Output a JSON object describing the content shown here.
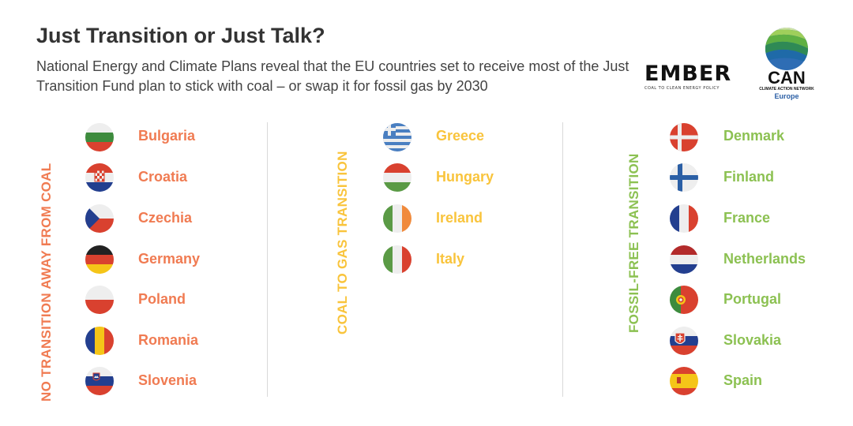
{
  "header": {
    "title": "Just Transition or Just Talk?",
    "subtitle": "National Energy and Climate Plans reveal that the EU countries set to receive most of the Just Transition Fund plan to stick with coal – or swap it for fossil gas by 2030"
  },
  "logos": {
    "ember": {
      "word": "EMBER",
      "tagline": "COAL TO CLEAN ENERGY POLICY"
    },
    "can": {
      "word": "CAN",
      "tagline": "CLIMATE ACTION NETWORK",
      "region": "Europe"
    }
  },
  "colors": {
    "no_transition": "#f07b52",
    "coal_to_gas": "#f9c43c",
    "fossil_free": "#8cc152"
  },
  "columns": [
    {
      "label": "NO TRANSITION AWAY FROM COAL",
      "countries": [
        "Bulgaria",
        "Croatia",
        "Czechia",
        "Germany",
        "Poland",
        "Romania",
        "Slovenia"
      ]
    },
    {
      "label": "COAL TO GAS TRANSITION",
      "countries": [
        "Greece",
        "Hungary",
        "Ireland",
        "Italy"
      ]
    },
    {
      "label": "FOSSIL-FREE TRANSITION",
      "countries": [
        "Denmark",
        "Finland",
        "France",
        "Netherlands",
        "Portugal",
        "Slovakia",
        "Spain"
      ]
    }
  ]
}
